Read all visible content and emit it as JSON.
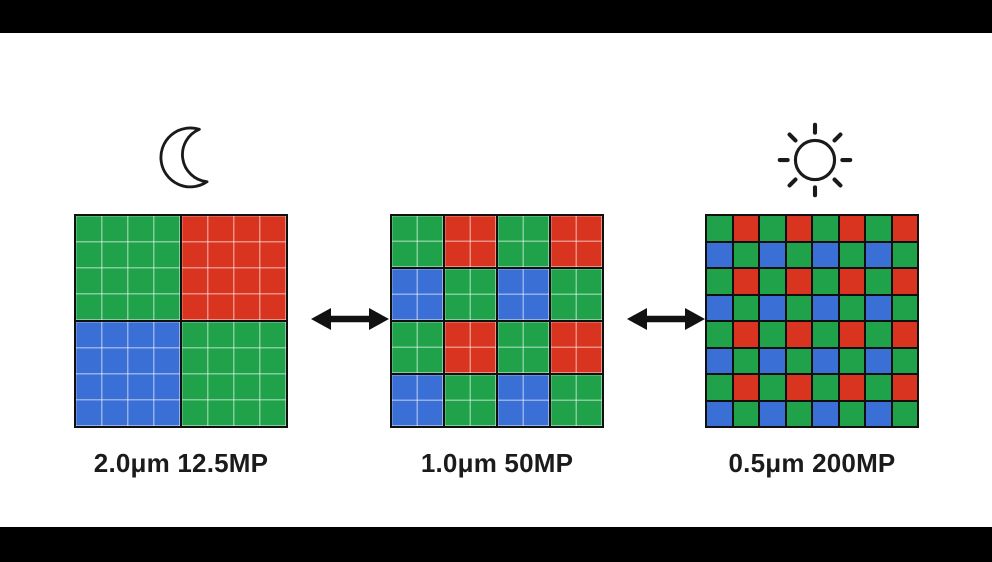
{
  "colors": {
    "green": "#1fa24a",
    "red": "#d9341f",
    "blue": "#3a70d6",
    "grid_line_dark": "#101010",
    "grid_line_light": "rgba(255,255,255,0.45)",
    "background": "#000000",
    "canvas": "#ffffff",
    "text": "#1b1b1b",
    "icon_stroke": "#1a1a1a"
  },
  "panels": [
    {
      "id": "low-light-mode",
      "icon": "moon-icon",
      "label": "2.0μm 12.5MP",
      "grid": {
        "blocks_per_side": 2,
        "subcells_per_block": 4,
        "pattern": [
          "GR",
          "BG"
        ]
      }
    },
    {
      "id": "mid-mode",
      "icon": null,
      "label": "1.0μm 50MP",
      "grid": {
        "blocks_per_side": 4,
        "subcells_per_block": 2,
        "pattern": [
          "GRGR",
          "BGBG",
          "GRGR",
          "BGBG"
        ]
      }
    },
    {
      "id": "bright-light-mode",
      "icon": "sun-icon",
      "label": "0.5μm 200MP",
      "grid": {
        "blocks_per_side": 8,
        "subcells_per_block": 1,
        "pattern": [
          "GRGRGRGR",
          "BGBGBGBG",
          "GRGRGRGR",
          "BGBGBGBG",
          "GRGRGRGR",
          "BGBGBGBG",
          "GRGRGRGR",
          "BGBGBGBG"
        ]
      }
    }
  ],
  "arrows": [
    {
      "type": "double-headed-horizontal"
    },
    {
      "type": "double-headed-horizontal"
    }
  ]
}
